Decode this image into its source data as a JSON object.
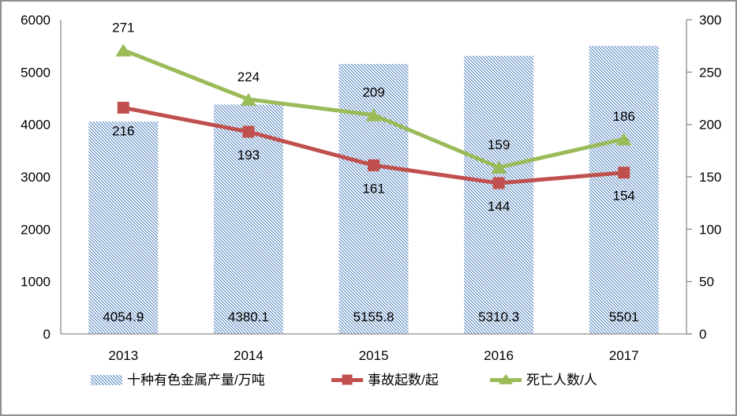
{
  "chart_data": {
    "type": "combo",
    "title": "",
    "categories": [
      "2013",
      "2014",
      "2015",
      "2016",
      "2017"
    ],
    "series": [
      {
        "name": "十种有色金属产量/万吨",
        "type": "bar",
        "axis": "left",
        "fill_style": "diagonal-hatch",
        "color": "#4f81bd",
        "values": [
          4054.9,
          4380.1,
          5155.8,
          5310.3,
          5501
        ],
        "data_labels": [
          "4054.9",
          "4380.1",
          "5155.8",
          "5310.3",
          "5501"
        ]
      },
      {
        "name": "事故起数/起",
        "type": "line",
        "axis": "right",
        "marker": "square",
        "color": "#c0504d",
        "values": [
          216,
          193,
          161,
          144,
          154
        ],
        "data_labels": [
          "216",
          "193",
          "161",
          "144",
          "154"
        ]
      },
      {
        "name": "死亡人数/人",
        "type": "line",
        "axis": "right",
        "marker": "triangle",
        "color": "#9bbb59",
        "values": [
          271,
          224,
          209,
          159,
          186
        ],
        "data_labels": [
          "271",
          "224",
          "209",
          "159",
          "186"
        ]
      }
    ],
    "axes": {
      "left": {
        "min": 0,
        "max": 6000,
        "step": 1000,
        "ticks": [
          "0",
          "1000",
          "2000",
          "3000",
          "4000",
          "5000",
          "6000"
        ]
      },
      "right": {
        "min": 0,
        "max": 300,
        "step": 50,
        "ticks": [
          "0",
          "50",
          "100",
          "150",
          "200",
          "250",
          "300"
        ]
      }
    },
    "grid": false,
    "legend_position": "bottom",
    "colors": {
      "axis": "#8c8c8c",
      "text": "#000000",
      "frame_border": "#8e8e8e",
      "background": "#ffffff"
    }
  }
}
